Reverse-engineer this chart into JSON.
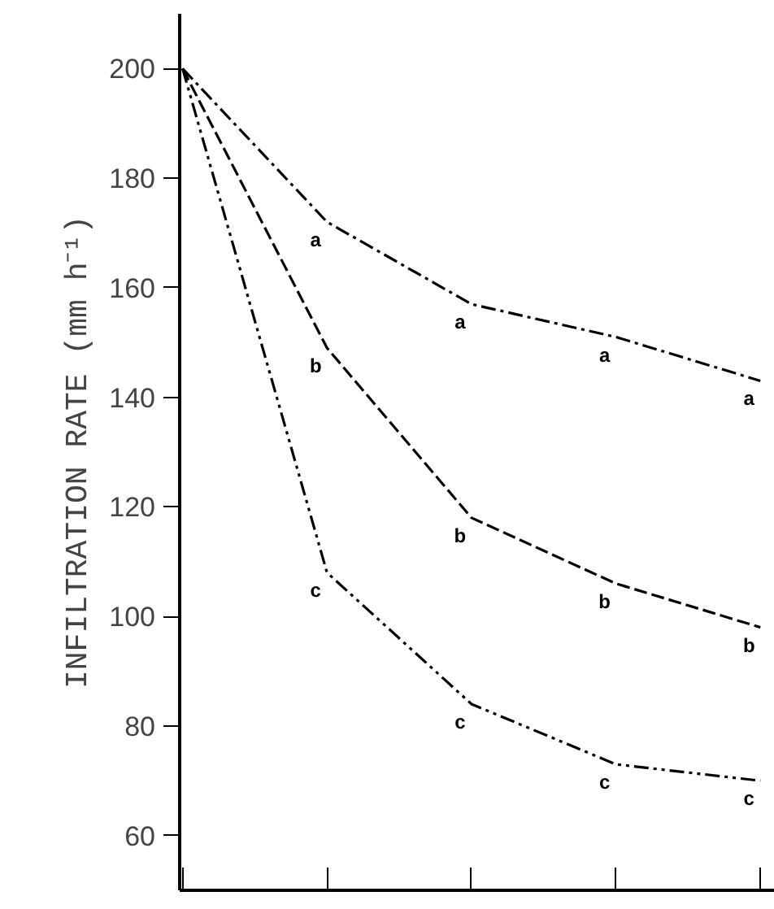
{
  "chart_data": {
    "type": "line",
    "ylabel": "INFILTRATION RATE (mm h⁻¹)",
    "categories": [
      null,
      null,
      null,
      null,
      null
    ],
    "series": [
      {
        "color": "#000000",
        "line_style": "dashdot",
        "values": [
          200,
          172,
          157,
          151,
          143
        ],
        "value_labels": [
          null,
          "a",
          "a",
          "a",
          "a"
        ]
      },
      {
        "color": "#000000",
        "line_style": "dashed",
        "values": [
          200,
          149,
          118,
          106,
          98
        ],
        "value_labels": [
          null,
          "b",
          "b",
          "b",
          "b"
        ]
      },
      {
        "color": "#000000",
        "line_style": "dashdotdot",
        "values": [
          200,
          108,
          84,
          73,
          70
        ],
        "value_labels": [
          null,
          "c",
          "c",
          "c",
          "c"
        ]
      }
    ],
    "ylim": [
      50,
      210
    ],
    "yticks": [
      60,
      80,
      100,
      120,
      140,
      160,
      180,
      200
    ],
    "grid": false
  }
}
